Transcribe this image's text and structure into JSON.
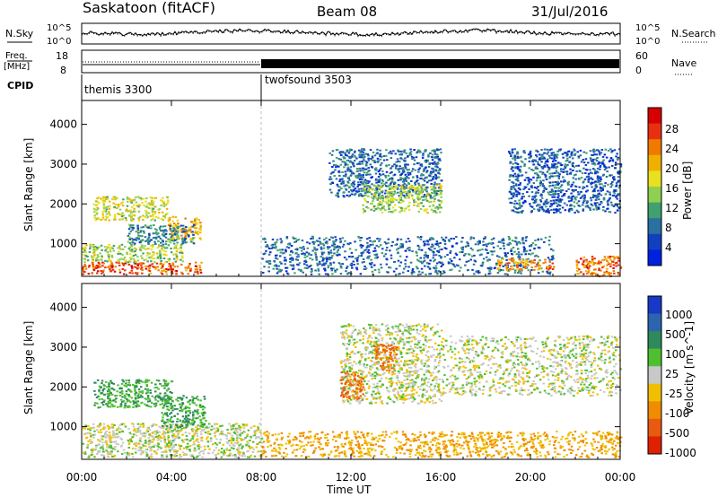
{
  "header": {
    "station": "Saskatoon (fitACF)",
    "beam": "Beam 08",
    "date": "31/Jul/2016"
  },
  "noise_panel": {
    "left_label": "N.Sky",
    "right_label": "N.Search",
    "left_ticks": [
      "10^5",
      "10^0"
    ],
    "right_ticks": [
      "10^5",
      "10^0"
    ]
  },
  "freq_panel": {
    "left_label_top": "Freq.",
    "left_label_bottom": "[MHz]",
    "right_label": "Nave",
    "left_ticks": [
      "18",
      "8"
    ],
    "right_ticks": [
      "60",
      "0"
    ]
  },
  "cpid_panel": {
    "label": "CPID",
    "programs": [
      {
        "name": "themis 3300",
        "start_hour": 0
      },
      {
        "name": "twofsound 3503",
        "start_hour": 8
      }
    ]
  },
  "axes": {
    "ylabel": "Slant Range [km]",
    "xlabel": "Time UT",
    "yticks": [
      "1000",
      "2000",
      "3000",
      "4000"
    ],
    "yrange_km": [
      180,
      4600
    ],
    "xticks": [
      "00:00",
      "04:00",
      "08:00",
      "12:00",
      "16:00",
      "20:00",
      "00:00"
    ],
    "xrange_hours": [
      0,
      24
    ]
  },
  "power_colorbar": {
    "label": "Power [dB]",
    "ticks": [
      "28",
      "24",
      "20",
      "16",
      "12",
      "8",
      "4"
    ],
    "colors": [
      "#d60000",
      "#e83010",
      "#f07a00",
      "#f0b000",
      "#e8e020",
      "#90d050",
      "#40a070",
      "#2a70a0",
      "#1040c0",
      "#0020e0"
    ]
  },
  "velocity_colorbar": {
    "label": "Velocity [m s^-1]",
    "ticks": [
      "1000",
      "500",
      "100",
      "25",
      "-25",
      "-100",
      "-500",
      "-1000"
    ],
    "colors": [
      "#1838c8",
      "#2c64b0",
      "#2e8a5a",
      "#4ec030",
      "#c8c8c8",
      "#f0c000",
      "#f08c00",
      "#e85a10",
      "#e02000"
    ]
  },
  "chart_data": {
    "type": "heatmap",
    "title": "Saskatoon (fitACF)",
    "xlabel": "Time UT",
    "ylabel": "Slant Range [km]",
    "xlim": [
      0,
      24
    ],
    "ylim": [
      180,
      4600
    ],
    "panels": [
      {
        "name": "Power [dB]",
        "regions": [
          {
            "t": [
              0.0,
              5.3
            ],
            "r": [
              250,
              550
            ],
            "value": 26
          },
          {
            "t": [
              0.0,
              4.5
            ],
            "r": [
              550,
              1000
            ],
            "value": 14
          },
          {
            "t": [
              0.5,
              3.8
            ],
            "r": [
              1600,
              2200
            ],
            "value": 16
          },
          {
            "t": [
              3.8,
              5.3
            ],
            "r": [
              1100,
              1700
            ],
            "value": 20
          },
          {
            "t": [
              2.0,
              5.0
            ],
            "r": [
              1000,
              1500
            ],
            "value": 8
          },
          {
            "t": [
              8.0,
              21.0
            ],
            "r": [
              250,
              1200
            ],
            "value": 6
          },
          {
            "t": [
              11.0,
              16.0
            ],
            "r": [
              2200,
              3400
            ],
            "value": 6
          },
          {
            "t": [
              12.5,
              16.0
            ],
            "r": [
              1800,
              2500
            ],
            "value": 14
          },
          {
            "t": [
              18.5,
              21.0
            ],
            "r": [
              350,
              650
            ],
            "value": 22
          },
          {
            "t": [
              22.0,
              24.0
            ],
            "r": [
              200,
              700
            ],
            "value": 24
          },
          {
            "t": [
              19.0,
              24.0
            ],
            "r": [
              1800,
              3400
            ],
            "value": 5
          }
        ]
      },
      {
        "name": "Velocity [m s^-1]",
        "regions": [
          {
            "t": [
              0.0,
              8.0
            ],
            "r": [
              250,
              1100
            ],
            "value": 0
          },
          {
            "t": [
              0.5,
              4.0
            ],
            "r": [
              1500,
              2200
            ],
            "value": 100
          },
          {
            "t": [
              3.5,
              5.5
            ],
            "r": [
              1000,
              1800
            ],
            "value": 100
          },
          {
            "t": [
              8.0,
              24.0
            ],
            "r": [
              250,
              900
            ],
            "value": -100
          },
          {
            "t": [
              11.5,
              16.0
            ],
            "r": [
              1600,
              3600
            ],
            "value": 0
          },
          {
            "t": [
              13.0,
              14.0
            ],
            "r": [
              2400,
              3100
            ],
            "value": -500
          },
          {
            "t": [
              11.5,
              12.5
            ],
            "r": [
              1700,
              2400
            ],
            "value": -500
          },
          {
            "t": [
              16.0,
              24.0
            ],
            "r": [
              1800,
              3300
            ],
            "value": 0
          }
        ]
      }
    ]
  }
}
